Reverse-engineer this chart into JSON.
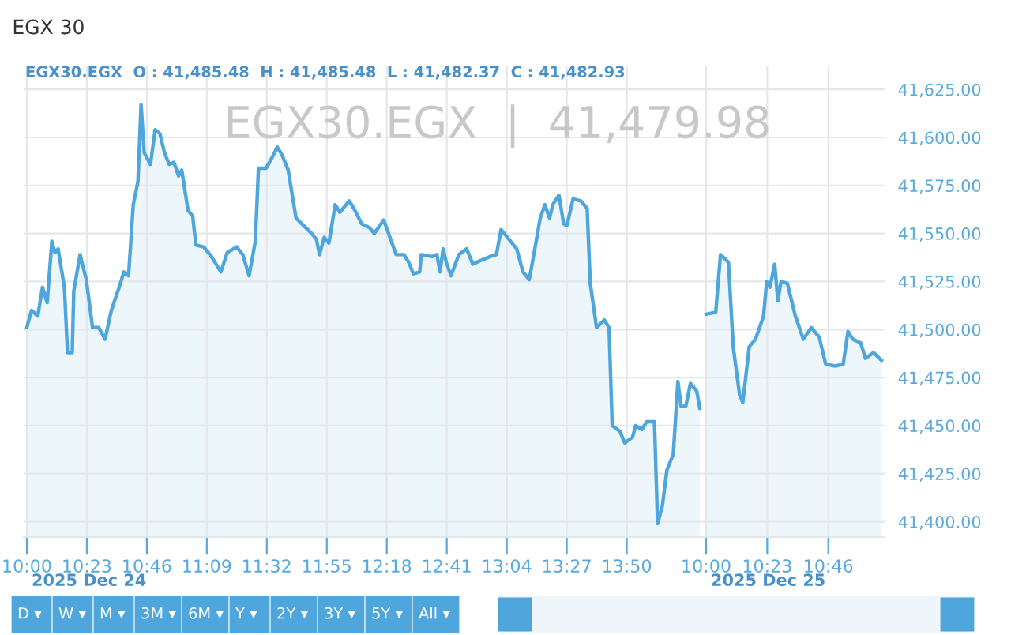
{
  "chart_data": [
    {
      "type": "area",
      "title": "EGX 30",
      "subtitle": "EGX30.EGX  O : 41,485.48  H : 41,485.48  L : 41,482.37  C : 41,482.93",
      "annotations": [
        "EGX30.EGX  |  41,479.98",
        "2025 Dec 24",
        "D ▾",
        "W ▾",
        "M ▾",
        "3M ▾",
        "6M ▾",
        "Y ▾",
        "2Y ▾",
        "3Y ▾",
        "5Y ▾",
        "All ▾"
      ],
      "series": [
        {
          "color": "#4ea6dc",
          "x": [
            10.0,
            10.03,
            10.07,
            10.1,
            10.13,
            10.16,
            10.18,
            10.2,
            10.24,
            10.26,
            10.29,
            10.3,
            10.34,
            10.38,
            10.42,
            10.46,
            10.5,
            10.54,
            10.59,
            10.62,
            10.65,
            10.68,
            10.71,
            10.73,
            10.75,
            10.79,
            10.82,
            10.85,
            10.88,
            10.91,
            10.94,
            10.97,
            10.99,
            11.03,
            11.06,
            11.08,
            11.13,
            11.18,
            11.24,
            11.28,
            11.34,
            11.38,
            11.42,
            11.46,
            11.48,
            11.53,
            11.57,
            11.6,
            11.63,
            11.67,
            11.72,
            11.77,
            11.82,
            11.85,
            11.87,
            11.9,
            11.93,
            11.97,
            12.0,
            12.06,
            12.09,
            12.14,
            12.19,
            12.22,
            12.28,
            12.32,
            12.36,
            12.41,
            12.44,
            12.47,
            12.51,
            12.52,
            12.59,
            12.62,
            12.64,
            12.66,
            12.68,
            12.71,
            12.76,
            12.81,
            12.85,
            12.9,
            12.96,
            13.0,
            13.03,
            13.08,
            13.13,
            13.17,
            13.21,
            13.25,
            13.28,
            13.31,
            13.34,
            13.36,
            13.4,
            13.43,
            13.45,
            13.49,
            13.54,
            13.58,
            13.6,
            13.64,
            13.69,
            13.72,
            13.74,
            13.79,
            13.82,
            13.87,
            13.89,
            13.93,
            13.96,
            14.01,
            14.03,
            14.06,
            14.09,
            14.13,
            14.16,
            14.18,
            14.21,
            14.24,
            14.28,
            14.3
          ],
          "values": [
            41501,
            41510,
            41507,
            41522,
            41514,
            41546,
            41540,
            41542,
            41522,
            41488,
            41488,
            41520,
            41539,
            41526,
            41501,
            41501,
            41495,
            41510,
            41522,
            41530,
            41528,
            41565,
            41577,
            41617,
            41592,
            41586,
            41604,
            41602,
            41592,
            41586,
            41587,
            41580,
            41583,
            41562,
            41559,
            41544,
            41543,
            41538,
            41530,
            41540,
            41543,
            41539,
            41528,
            41546,
            41584,
            41584,
            41590,
            41595,
            41591,
            41583,
            41558,
            41554,
            41550,
            41547,
            41539,
            41548,
            41545,
            41565,
            41561,
            41567,
            41563,
            41555,
            41553,
            41550,
            41557,
            41548,
            41539,
            41539,
            41535,
            41529,
            41530,
            41539,
            41538,
            41539,
            41530,
            41542,
            41535,
            41528,
            41539,
            41542,
            41534,
            41536,
            41538,
            41539,
            41552,
            41547,
            41542,
            41530,
            41526,
            41544,
            41558,
            41565,
            41558,
            41565,
            41570,
            41555,
            41554,
            41568,
            41567,
            41563,
            41524,
            41501,
            41505,
            41501,
            41450,
            41447,
            41441,
            41444,
            41450,
            41448,
            41452,
            41452,
            41399,
            41408,
            41427,
            41435,
            41473,
            41460,
            41460,
            41472,
            41468,
            41459
          ]
        }
      ],
      "xlim": [
        9.98,
        14.32
      ],
      "xticks": [
        {
          "value": 10,
          "label": "10:00"
        },
        {
          "value": 10.3833,
          "label": "10:23"
        },
        {
          "value": 10.7667,
          "label": "10:46"
        },
        {
          "value": 11.15,
          "label": "11:09"
        },
        {
          "value": 11.5333,
          "label": "11:32"
        },
        {
          "value": 11.9167,
          "label": "11:55"
        },
        {
          "value": 12.3,
          "label": "12:18"
        },
        {
          "value": 12.6833,
          "label": "12:41"
        },
        {
          "value": 13.0667,
          "label": "13:04"
        },
        {
          "value": 13.45,
          "label": "13:27"
        },
        {
          "value": 13.8333,
          "label": "13:50"
        }
      ],
      "ylim": [
        41392,
        41637
      ],
      "yticks": [
        41400,
        41425,
        41450,
        41475,
        41500,
        41525,
        41550,
        41575,
        41600,
        41625
      ],
      "tick_labels": "x",
      "grid": true
    },
    {
      "type": "area",
      "annotations": [
        "2025 Dec 25"
      ],
      "series": [
        {
          "color": "#4ea6dc",
          "x": [
            10.0,
            10.06,
            10.09,
            10.14,
            10.17,
            10.21,
            10.23,
            10.27,
            10.31,
            10.36,
            10.38,
            10.4,
            10.43,
            10.45,
            10.47,
            10.51,
            10.56,
            10.61,
            10.66,
            10.71,
            10.75,
            10.81,
            10.86,
            10.89,
            10.92,
            10.97,
            11.0,
            11.05,
            11.1
          ],
          "values": [
            41508,
            41509,
            41539,
            41535,
            41491,
            41466,
            41462,
            41491,
            41495,
            41507,
            41525,
            41522,
            41534,
            41515,
            41525,
            41524,
            41507,
            41495,
            41501,
            41496,
            41482,
            41481,
            41482,
            41499,
            41495,
            41493,
            41485,
            41488,
            41484
          ]
        }
      ],
      "xlim": [
        9.98,
        11.12
      ],
      "xticks": [
        {
          "value": 10,
          "label": "10:00"
        },
        {
          "value": 10.3833,
          "label": "10:23"
        },
        {
          "value": 10.7667,
          "label": "10:46"
        }
      ],
      "ylim": [
        41392,
        41637
      ],
      "yticks": [
        {
          "value": 41400,
          "label": "41,400.00"
        },
        {
          "value": 41425,
          "label": "41,425.00"
        },
        {
          "value": 41450,
          "label": "41,450.00"
        },
        {
          "value": 41475,
          "label": "41,475.00"
        },
        {
          "value": 41500,
          "label": "41,500.00"
        },
        {
          "value": 41525,
          "label": "41,525.00"
        },
        {
          "value": 41550,
          "label": "41,550.00"
        },
        {
          "value": 41575,
          "label": "41,575.00"
        },
        {
          "value": 41600,
          "label": "41,600.00"
        },
        {
          "value": 41625,
          "label": "41,625.00"
        }
      ],
      "grid": true
    }
  ]
}
